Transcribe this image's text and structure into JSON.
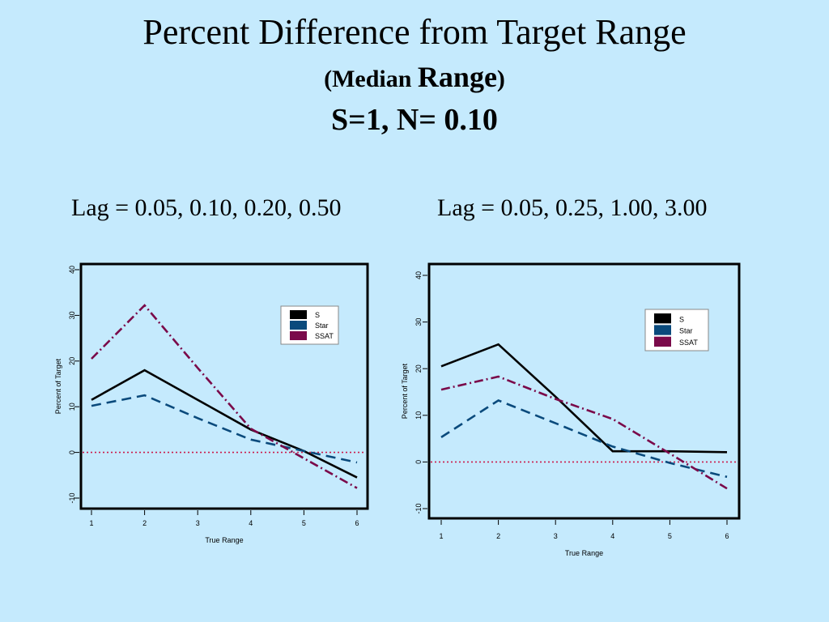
{
  "title": {
    "line1": "Percent Difference from Target Range",
    "line2_open": "(",
    "line2_small": "Median ",
    "line2_big": "Range",
    "line2_close": ")",
    "line3": "S=1, N= 0.10"
  },
  "colors": {
    "background": "#c5eafd",
    "S": "#000000",
    "Star": "#0a4a7c",
    "SSAT": "#7a0a4a",
    "zero_line": "#cc1a4a"
  },
  "chart_data": [
    {
      "type": "line",
      "subtitle": "Lag = 0.05, 0.10, 0.20, 0.50",
      "xlabel": "True Range",
      "ylabel": "Percent of Target",
      "x": [
        1,
        2,
        3,
        4,
        5,
        6
      ],
      "xlim": [
        1,
        6
      ],
      "ylim": [
        -10,
        40
      ],
      "yticks": [
        -10,
        0,
        10,
        20,
        30,
        40
      ],
      "series": [
        {
          "name": "S",
          "values": [
            11.5,
            18,
            11.5,
            5,
            0.3,
            -5.5
          ]
        },
        {
          "name": "Star",
          "values": [
            10.2,
            12.5,
            7.5,
            2.8,
            0.3,
            -2.2
          ]
        },
        {
          "name": "SSAT",
          "values": [
            20.5,
            32.2,
            18.5,
            5.2,
            -1.3,
            -7.8
          ]
        }
      ],
      "reference_line": 0,
      "legend": "top-right"
    },
    {
      "type": "line",
      "subtitle": "Lag = 0.05, 0.25, 1.00, 3.00",
      "xlabel": "True Range",
      "ylabel": "Percent of Target",
      "x": [
        1,
        2,
        3,
        4,
        5,
        6
      ],
      "xlim": [
        1,
        6
      ],
      "ylim": [
        -10,
        40
      ],
      "yticks": [
        -10,
        0,
        10,
        20,
        30,
        40
      ],
      "series": [
        {
          "name": "S",
          "values": [
            20.5,
            25.2,
            14,
            2.3,
            2.3,
            2.1
          ]
        },
        {
          "name": "Star",
          "values": [
            5.3,
            13.2,
            8.3,
            3.3,
            -0.2,
            -3.2
          ]
        },
        {
          "name": "SSAT",
          "values": [
            15.5,
            18.3,
            13.5,
            9.2,
            1.8,
            -5.7
          ]
        }
      ],
      "reference_line": 0,
      "legend": "top-right"
    }
  ]
}
